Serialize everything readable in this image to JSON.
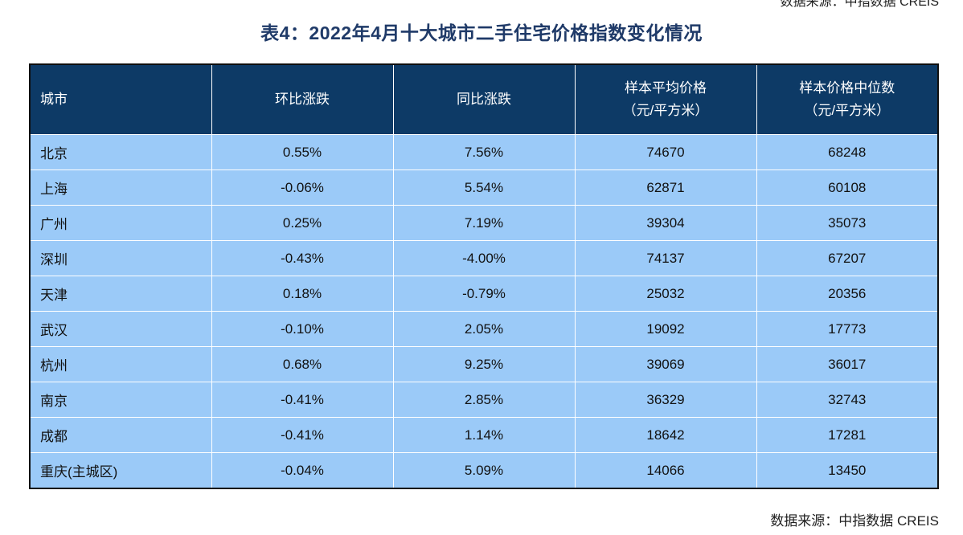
{
  "source_top": "数据来源：中指数据 CREIS",
  "title": "表4：2022年4月十大城市二手住宅价格指数变化情况",
  "table": {
    "headers": [
      {
        "line1": "城市",
        "line2": ""
      },
      {
        "line1": "环比涨跌",
        "line2": ""
      },
      {
        "line1": "同比涨跌",
        "line2": ""
      },
      {
        "line1": "样本平均价格",
        "line2": "（元/平方米）"
      },
      {
        "line1": "样本价格中位数",
        "line2": "（元/平方米）"
      }
    ],
    "rows": [
      [
        "北京",
        "0.55%",
        "7.56%",
        "74670",
        "68248"
      ],
      [
        "上海",
        "-0.06%",
        "5.54%",
        "62871",
        "60108"
      ],
      [
        "广州",
        "0.25%",
        "7.19%",
        "39304",
        "35073"
      ],
      [
        "深圳",
        "-0.43%",
        "-4.00%",
        "74137",
        "67207"
      ],
      [
        "天津",
        "0.18%",
        "-0.79%",
        "25032",
        "20356"
      ],
      [
        "武汉",
        "-0.10%",
        "2.05%",
        "19092",
        "17773"
      ],
      [
        "杭州",
        "0.68%",
        "9.25%",
        "39069",
        "36017"
      ],
      [
        "南京",
        "-0.41%",
        "2.85%",
        "36329",
        "32743"
      ],
      [
        "成都",
        "-0.41%",
        "1.14%",
        "18642",
        "17281"
      ],
      [
        "重庆(主城区)",
        "-0.04%",
        "5.09%",
        "14066",
        "13450"
      ]
    ]
  },
  "source_bottom": "数据来源：中指数据 CREIS",
  "colors": {
    "header_bg": "#0d3a66",
    "row_bg": "#9bcaf8",
    "title_color": "#1f3a68"
  }
}
